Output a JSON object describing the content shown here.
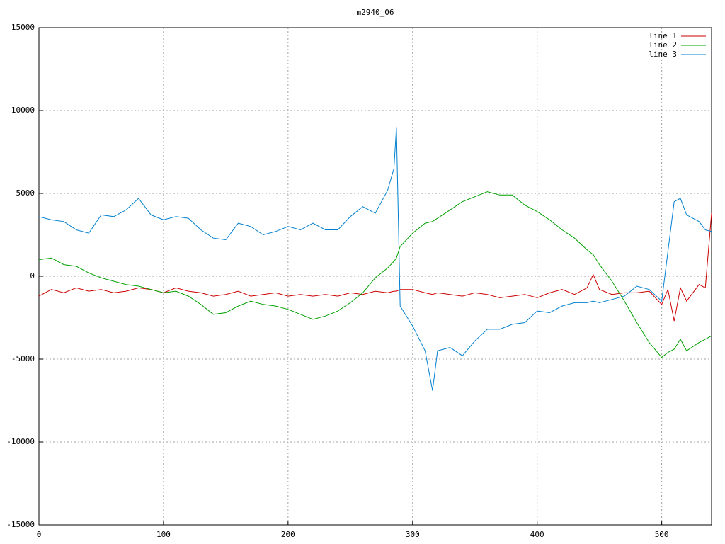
{
  "chart_data": {
    "type": "line",
    "title": "m2940_06",
    "x": [
      0,
      10,
      20,
      30,
      40,
      50,
      60,
      70,
      80,
      90,
      100,
      110,
      120,
      130,
      140,
      150,
      160,
      170,
      180,
      190,
      200,
      210,
      220,
      230,
      240,
      250,
      260,
      270,
      280,
      285,
      287,
      290,
      300,
      310,
      316,
      320,
      330,
      340,
      350,
      360,
      370,
      380,
      390,
      400,
      410,
      420,
      430,
      440,
      445,
      450,
      460,
      470,
      480,
      490,
      500,
      505,
      510,
      515,
      520,
      530,
      535,
      540
    ],
    "series": [
      {
        "name": "line 1",
        "color": "#cc0000",
        "values": [
          -1200,
          -800,
          -1000,
          -700,
          -900,
          -800,
          -1000,
          -900,
          -700,
          -800,
          -1000,
          -700,
          -900,
          -1000,
          -1200,
          -1100,
          -900,
          -1200,
          -1100,
          -1000,
          -1200,
          -1100,
          -1200,
          -1100,
          -1200,
          -1000,
          -1100,
          -900,
          -1000,
          -900,
          -900,
          -800,
          -800,
          -1000,
          -1100,
          -1000,
          -1100,
          -1200,
          -1000,
          -1100,
          -1300,
          -1200,
          -1100,
          -1300,
          -1000,
          -800,
          -1100,
          -700,
          100,
          -800,
          -1100,
          -1000,
          -1000,
          -900,
          -1700,
          -800,
          -2700,
          -700,
          -1500,
          -500,
          -700,
          3800
        ]
      },
      {
        "name": "line 2",
        "color": "#00a000",
        "values": [
          1000,
          1100,
          700,
          600,
          200,
          -100,
          -300,
          -500,
          -600,
          -800,
          -1000,
          -900,
          -1200,
          -1700,
          -2300,
          -2200,
          -1800,
          -1500,
          -1700,
          -1800,
          -2000,
          -2300,
          -2600,
          -2400,
          -2100,
          -1600,
          -1000,
          -100,
          500,
          900,
          1100,
          1800,
          2600,
          3200,
          3300,
          3500,
          4000,
          4500,
          4800,
          5100,
          4900,
          4900,
          4300,
          3900,
          3400,
          2800,
          2300,
          1600,
          1300,
          700,
          -300,
          -1500,
          -2800,
          -4000,
          -4900,
          -4600,
          -4400,
          -3800,
          -4500,
          -4000,
          -3800,
          -3600
        ]
      },
      {
        "name": "line 3",
        "color": "#0080d0",
        "values": [
          3600,
          3400,
          3300,
          2800,
          2600,
          3700,
          3600,
          4000,
          4700,
          3700,
          3400,
          3600,
          3500,
          2800,
          2300,
          2200,
          3200,
          3000,
          2500,
          2700,
          3000,
          2800,
          3200,
          2800,
          2800,
          3600,
          4200,
          3800,
          5200,
          6500,
          9000,
          -1800,
          -3000,
          -4500,
          -6900,
          -4500,
          -4300,
          -4800,
          -3900,
          -3200,
          -3200,
          -2900,
          -2800,
          -2100,
          -2200,
          -1800,
          -1600,
          -1600,
          -1500,
          -1600,
          -1400,
          -1200,
          -600,
          -800,
          -1500,
          1500,
          4500,
          4700,
          3700,
          3300,
          2800,
          2700
        ]
      }
    ],
    "xlim": [
      0,
      540
    ],
    "ylim": [
      -15000,
      15000
    ],
    "xticks": [
      0,
      100,
      200,
      300,
      400,
      500
    ],
    "yticks": [
      -15000,
      -10000,
      -5000,
      0,
      5000,
      10000,
      15000
    ],
    "grid": true,
    "legend": "top-right"
  }
}
